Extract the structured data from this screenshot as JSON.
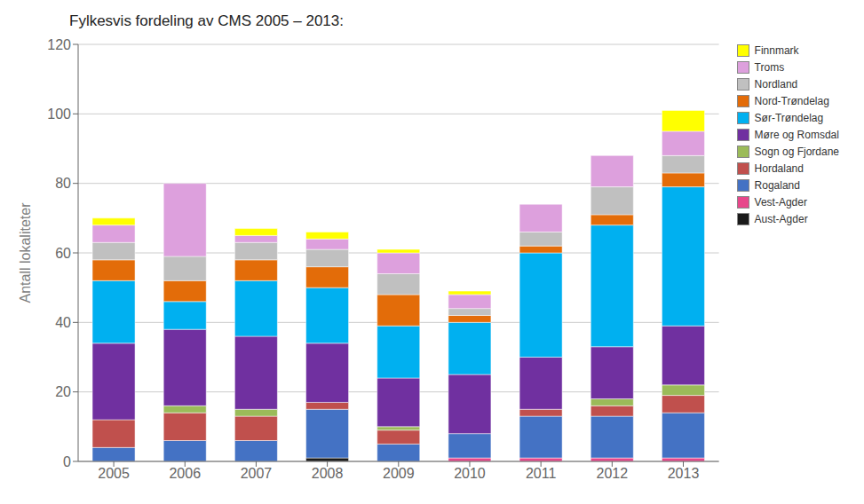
{
  "chart_data": {
    "type": "bar",
    "stacked": true,
    "title": "Fylkesvis fordeling av CMS 2005 – 2013:",
    "ylabel": "Antall lokaliteter",
    "categories": [
      "2005",
      "2006",
      "2007",
      "2008",
      "2009",
      "2010",
      "2011",
      "2012",
      "2013"
    ],
    "series": [
      {
        "name": "Aust-Agder",
        "color": "#1A1A1A",
        "values": [
          0,
          0,
          0,
          1,
          0,
          0,
          0,
          0,
          0
        ]
      },
      {
        "name": "Vest-Agder",
        "color": "#E8478B",
        "values": [
          0,
          0,
          0,
          0,
          0,
          1,
          1,
          1,
          1
        ]
      },
      {
        "name": "Rogaland",
        "color": "#4472C4",
        "values": [
          4,
          6,
          6,
          14,
          5,
          7,
          12,
          12,
          13
        ]
      },
      {
        "name": "Hordaland",
        "color": "#C0504D",
        "values": [
          8,
          8,
          7,
          2,
          4,
          0,
          2,
          3,
          5
        ]
      },
      {
        "name": "Sogn og Fjordane",
        "color": "#9BBB59",
        "values": [
          0,
          2,
          2,
          0,
          1,
          0,
          0,
          2,
          3
        ]
      },
      {
        "name": "Møre og Romsdal",
        "color": "#7030A0",
        "values": [
          22,
          22,
          21,
          17,
          14,
          17,
          15,
          15,
          17
        ]
      },
      {
        "name": "Sør-Trøndelag",
        "color": "#00B0F0",
        "values": [
          18,
          8,
          16,
          16,
          15,
          15,
          30,
          35,
          40
        ]
      },
      {
        "name": "Nord-Trøndelag",
        "color": "#E36C09",
        "values": [
          6,
          6,
          6,
          6,
          9,
          2,
          2,
          3,
          4
        ]
      },
      {
        "name": "Nordland",
        "color": "#C0C0C0",
        "values": [
          5,
          7,
          5,
          5,
          6,
          2,
          4,
          8,
          5
        ]
      },
      {
        "name": "Troms",
        "color": "#DDA0DD",
        "values": [
          5,
          21,
          2,
          3,
          6,
          4,
          8,
          9,
          7
        ]
      },
      {
        "name": "Finnmark",
        "color": "#FFFF00",
        "values": [
          2,
          0,
          2,
          2,
          1,
          1,
          0,
          0,
          6
        ]
      }
    ],
    "ylim": [
      0,
      120
    ],
    "yticks": [
      0,
      20,
      40,
      60,
      80,
      100,
      120
    ],
    "grid": true,
    "legend": "right"
  }
}
